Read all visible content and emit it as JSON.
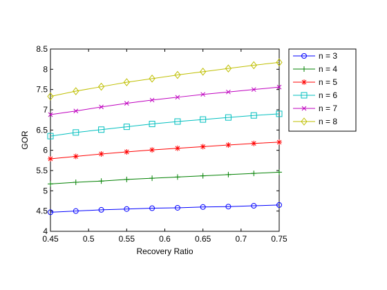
{
  "chart_data": {
    "type": "line",
    "title": "",
    "xlabel": "Recovery Ratio",
    "ylabel": "GOR",
    "xlim": [
      0.45,
      0.75
    ],
    "ylim": [
      4,
      8.5
    ],
    "xticks": [
      0.45,
      0.5,
      0.55,
      0.6,
      0.65,
      0.7,
      0.75
    ],
    "xtick_labels": [
      "0.45",
      "0.5",
      "0.55",
      "0.6",
      "0.65",
      "0.7",
      "0.75"
    ],
    "yticks": [
      4,
      4.5,
      5,
      5.5,
      6,
      6.5,
      7,
      7.5,
      8,
      8.5
    ],
    "ytick_labels": [
      "4",
      "4.5",
      "5",
      "5.5",
      "6",
      "6.5",
      "7",
      "7.5",
      "8",
      "8.5"
    ],
    "grid": false,
    "legend_position": "outside-top-right",
    "x": [
      0.45,
      0.4833,
      0.5167,
      0.55,
      0.5833,
      0.6167,
      0.65,
      0.6833,
      0.7167,
      0.75
    ],
    "series": [
      {
        "name": "n = 3",
        "color": "#0000ff",
        "marker": "circle",
        "values": [
          4.47,
          4.5,
          4.53,
          4.55,
          4.57,
          4.58,
          4.6,
          4.61,
          4.63,
          4.65
        ]
      },
      {
        "name": "n = 4",
        "color": "#008000",
        "marker": "plus",
        "values": [
          5.17,
          5.21,
          5.24,
          5.28,
          5.31,
          5.34,
          5.37,
          5.4,
          5.43,
          5.46
        ]
      },
      {
        "name": "n = 5",
        "color": "#ff0000",
        "marker": "star",
        "values": [
          5.79,
          5.85,
          5.91,
          5.96,
          6.01,
          6.05,
          6.09,
          6.13,
          6.17,
          6.2
        ]
      },
      {
        "name": "n = 6",
        "color": "#00bfbf",
        "marker": "square",
        "values": [
          6.35,
          6.44,
          6.51,
          6.58,
          6.65,
          6.71,
          6.76,
          6.81,
          6.86,
          6.9
        ]
      },
      {
        "name": "n = 7",
        "color": "#bf00bf",
        "marker": "x",
        "values": [
          6.88,
          6.97,
          7.07,
          7.16,
          7.24,
          7.31,
          7.38,
          7.44,
          7.5,
          7.56
        ]
      },
      {
        "name": "n = 8",
        "color": "#bfbf00",
        "marker": "diamond",
        "values": [
          7.33,
          7.46,
          7.57,
          7.68,
          7.77,
          7.86,
          7.94,
          8.02,
          8.1,
          8.17
        ]
      }
    ]
  }
}
